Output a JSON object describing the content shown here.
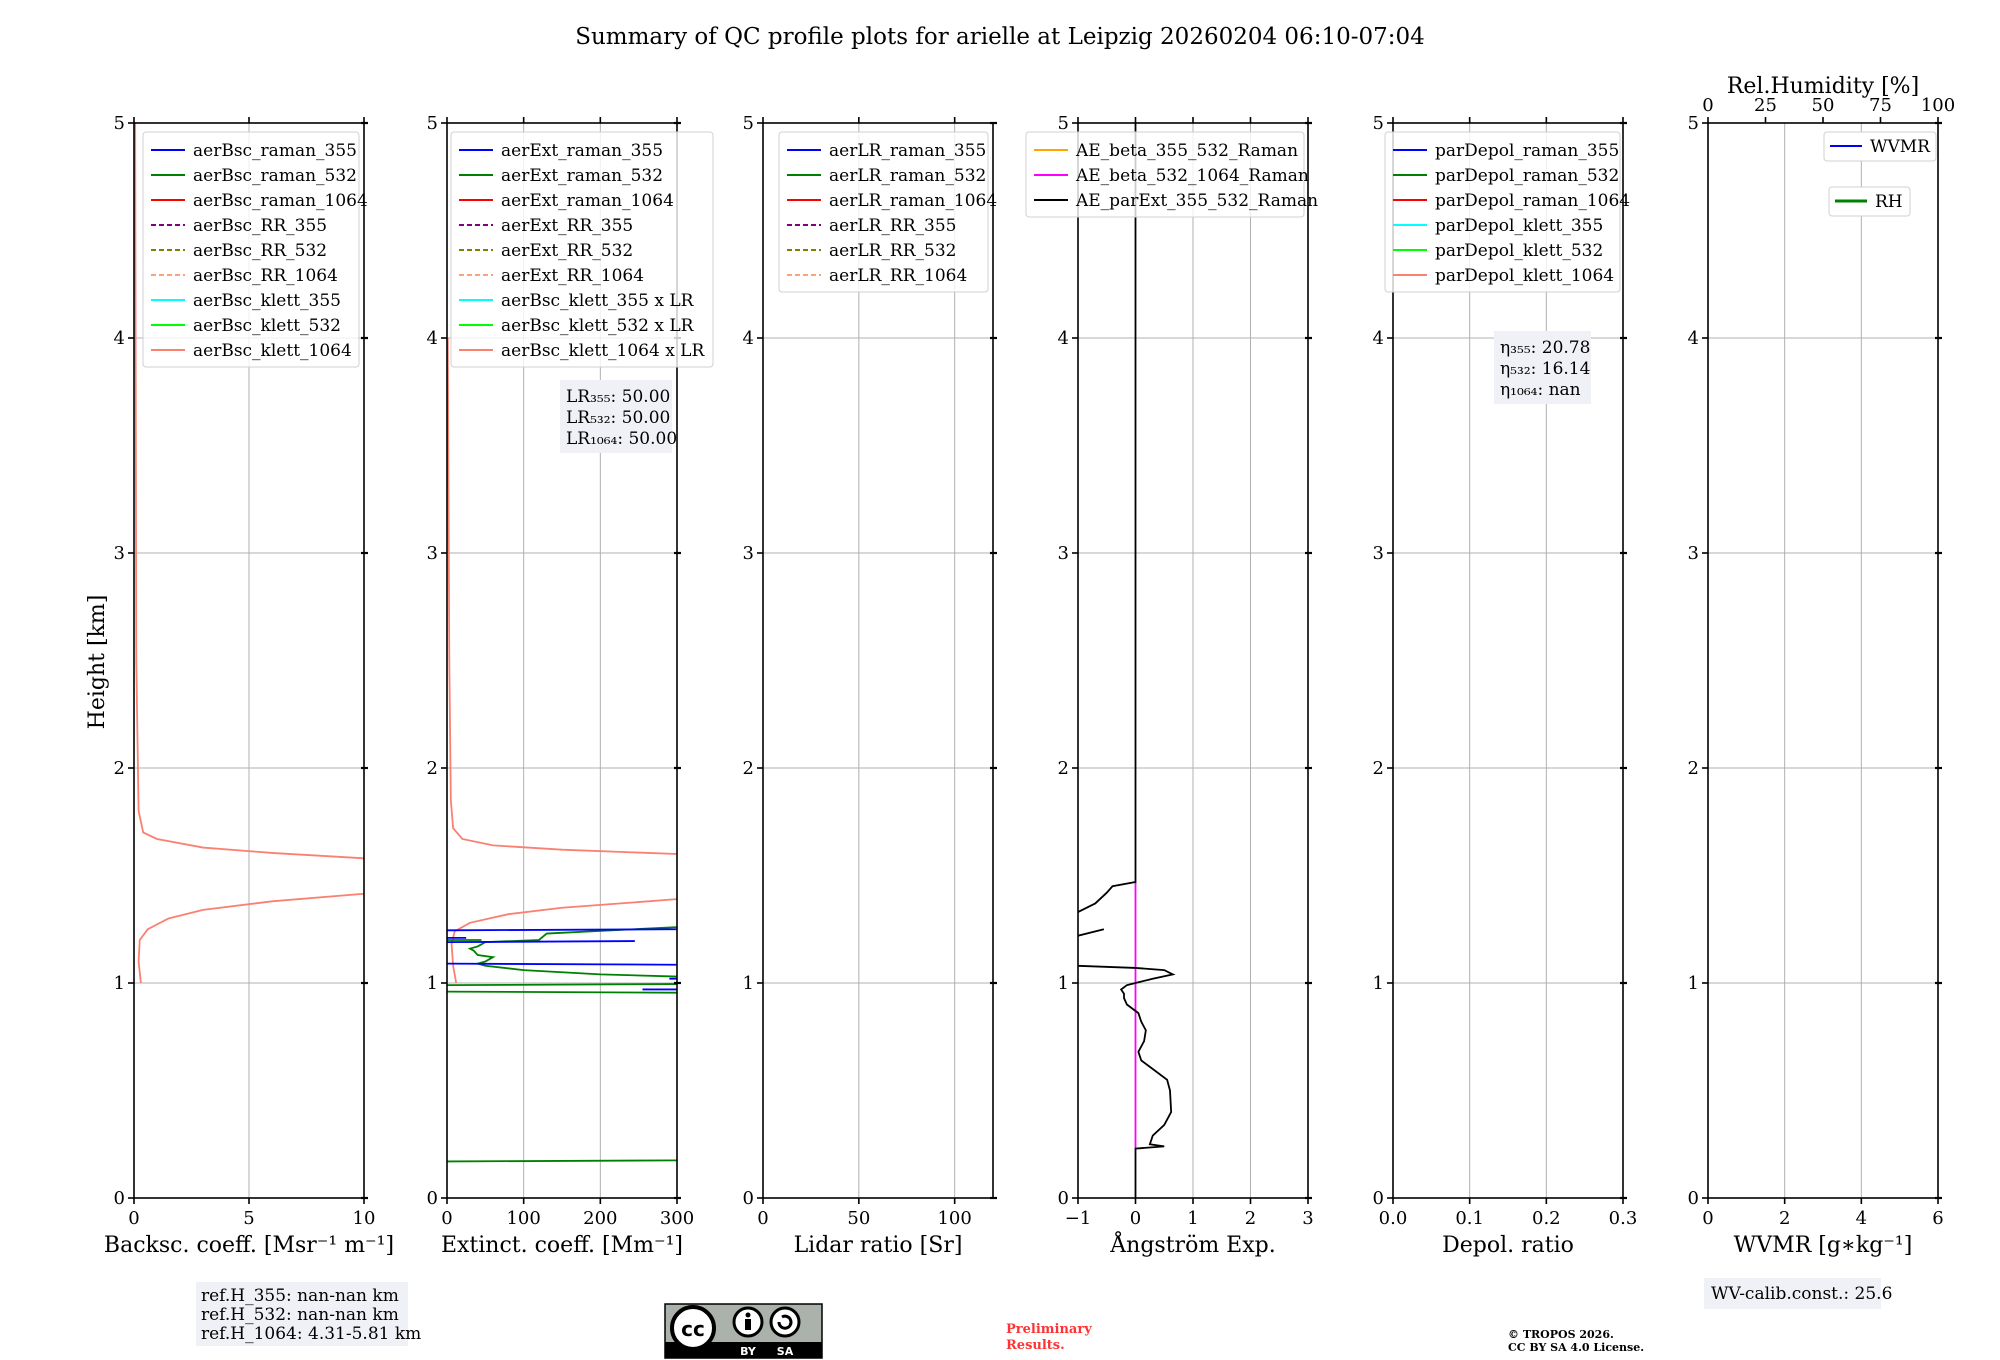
{
  "title": "Summary of QC profile plots for arielle at Leipzig 20260204 06:10-07:04",
  "ylabel": "Height [km]",
  "chart_data": [
    {
      "type": "line",
      "xlabel": "Backsc. coeff. [Msr⁻¹ m⁻¹]",
      "xlim": [
        0,
        10
      ],
      "ylim": [
        0,
        5
      ],
      "xticks": [
        0,
        5,
        10
      ],
      "xtick_labels": [
        "0",
        "5",
        "10"
      ],
      "yticks": [
        0,
        1,
        2,
        3,
        4,
        5
      ],
      "ytick_labels": [
        "0",
        "1",
        "2",
        "3",
        "4",
        "5"
      ],
      "grid": true,
      "legend_placement": "top-left",
      "legend": [
        {
          "label": "aerBsc_raman_355",
          "color": "#0000ff",
          "dash": false
        },
        {
          "label": "aerBsc_raman_532",
          "color": "#008000",
          "dash": false
        },
        {
          "label": "aerBsc_raman_1064",
          "color": "#ff0000",
          "dash": false
        },
        {
          "label": "aerBsc_RR_355",
          "color": "#800080",
          "dash": true
        },
        {
          "label": "aerBsc_RR_532",
          "color": "#808000",
          "dash": true
        },
        {
          "label": "aerBsc_RR_1064",
          "color": "#ffa07a",
          "dash": true
        },
        {
          "label": "aerBsc_klett_355",
          "color": "#00ffff",
          "dash": false
        },
        {
          "label": "aerBsc_klett_532",
          "color": "#00ff00",
          "dash": false
        },
        {
          "label": "aerBsc_klett_1064",
          "color": "#fa8072",
          "dash": false
        }
      ],
      "series": [
        {
          "name": "aerBsc_klett_1064",
          "color": "#fa8072",
          "segments": [
            [
              [
                0.3,
                1.0
              ],
              [
                0.2,
                1.1
              ],
              [
                0.25,
                1.2
              ],
              [
                0.6,
                1.25
              ],
              [
                1.5,
                1.3
              ],
              [
                3,
                1.34
              ],
              [
                6,
                1.38
              ],
              [
                10,
                1.415
              ]
            ],
            [
              [
                10,
                1.58
              ],
              [
                6,
                1.605
              ],
              [
                3,
                1.63
              ],
              [
                1,
                1.67
              ],
              [
                0.4,
                1.7
              ],
              [
                0.2,
                1.8
              ],
              [
                0.1,
                2.5
              ],
              [
                0.05,
                5
              ]
            ]
          ]
        }
      ]
    },
    {
      "type": "line",
      "xlabel": "Extinct. coeff. [Mm⁻¹]",
      "xlim": [
        0,
        300
      ],
      "ylim": [
        0,
        5
      ],
      "xticks": [
        0,
        100,
        200,
        300
      ],
      "xtick_labels": [
        "0",
        "100",
        "200",
        "300"
      ],
      "yticks": [
        0,
        1,
        2,
        3,
        4,
        5
      ],
      "ytick_labels": [
        "0",
        "1",
        "2",
        "3",
        "4",
        "5"
      ],
      "grid": true,
      "legend_placement": "top-left",
      "legend": [
        {
          "label": "aerExt_raman_355",
          "color": "#0000ff",
          "dash": false
        },
        {
          "label": "aerExt_raman_532",
          "color": "#008000",
          "dash": false
        },
        {
          "label": "aerExt_raman_1064",
          "color": "#ff0000",
          "dash": false
        },
        {
          "label": "aerExt_RR_355",
          "color": "#800080",
          "dash": true
        },
        {
          "label": "aerExt_RR_532",
          "color": "#808000",
          "dash": true
        },
        {
          "label": "aerExt_RR_1064",
          "color": "#ffa07a",
          "dash": true
        },
        {
          "label": "aerBsc_klett_355 x LR",
          "color": "#00ffff",
          "dash": false
        },
        {
          "label": "aerBsc_klett_532 x LR",
          "color": "#00ff00",
          "dash": false
        },
        {
          "label": "aerBsc_klett_1064 x LR",
          "color": "#fa8072",
          "dash": false
        }
      ],
      "annotation": [
        "LR₃₅₅: 50.00",
        "LR₅₃₂: 50.00",
        "LR₁₀₆₄: 50.00"
      ],
      "series": [
        {
          "name": "aerBsc_klett_1064 x LR",
          "color": "#fa8072",
          "segments": [
            [
              [
                12,
                1.0
              ],
              [
                8,
                1.08
              ],
              [
                6,
                1.18
              ],
              [
                10,
                1.24
              ],
              [
                30,
                1.28
              ],
              [
                80,
                1.32
              ],
              [
                150,
                1.35
              ],
              [
                300,
                1.39
              ]
            ],
            [
              [
                300,
                1.6
              ],
              [
                150,
                1.62
              ],
              [
                60,
                1.64
              ],
              [
                20,
                1.67
              ],
              [
                8,
                1.72
              ],
              [
                5,
                1.85
              ],
              [
                3,
                2.5
              ],
              [
                1,
                4.0
              ]
            ]
          ]
        },
        {
          "name": "aerExt_raman_532",
          "color": "#008000",
          "segments": [
            [
              [
                0,
                0.17
              ],
              [
                300,
                0.175
              ]
            ],
            [
              [
                0,
                0.96
              ],
              [
                300,
                0.955
              ]
            ],
            [
              [
                0,
                0.99
              ],
              [
                300,
                0.995
              ]
            ],
            [
              [
                300,
                1.03
              ],
              [
                200,
                1.04
              ],
              [
                100,
                1.06
              ],
              [
                50,
                1.08
              ],
              [
                40,
                1.09
              ],
              [
                50,
                1.1
              ],
              [
                60,
                1.12
              ],
              [
                40,
                1.13
              ],
              [
                35,
                1.15
              ],
              [
                30,
                1.16
              ],
              [
                40,
                1.17
              ],
              [
                45,
                1.18
              ],
              [
                50,
                1.19
              ],
              [
                120,
                1.2
              ],
              [
                130,
                1.23
              ],
              [
                300,
                1.26
              ]
            ],
            [
              [
                0,
                1.2
              ],
              [
                45,
                1.2
              ]
            ]
          ]
        },
        {
          "name": "aerExt_raman_355",
          "color": "#0000ff",
          "segments": [
            [
              [
                0,
                1.09
              ],
              [
                300,
                1.085
              ]
            ],
            [
              [
                0,
                1.19
              ],
              [
                245,
                1.195
              ]
            ],
            [
              [
                0,
                1.21
              ],
              [
                25,
                1.21
              ]
            ],
            [
              [
                0,
                1.245
              ],
              [
                300,
                1.25
              ]
            ],
            [
              [
                255,
                0.97
              ],
              [
                300,
                0.97
              ]
            ],
            [
              [
                290,
                1.02
              ],
              [
                300,
                1.02
              ]
            ]
          ]
        }
      ]
    },
    {
      "type": "line",
      "xlabel": "Lidar ratio [Sr]",
      "xlim": [
        0,
        120
      ],
      "ylim": [
        0,
        5
      ],
      "xticks": [
        0,
        50,
        100
      ],
      "xtick_labels": [
        "0",
        "50",
        "100"
      ],
      "yticks": [
        0,
        1,
        2,
        3,
        4,
        5
      ],
      "ytick_labels": [
        "0",
        "1",
        "2",
        "3",
        "4",
        "5"
      ],
      "grid": true,
      "legend_placement": "top-left",
      "legend": [
        {
          "label": "aerLR_raman_355",
          "color": "#0000ff",
          "dash": false
        },
        {
          "label": "aerLR_raman_532",
          "color": "#008000",
          "dash": false
        },
        {
          "label": "aerLR_raman_1064",
          "color": "#ff0000",
          "dash": false
        },
        {
          "label": "aerLR_RR_355",
          "color": "#800080",
          "dash": true
        },
        {
          "label": "aerLR_RR_532",
          "color": "#808000",
          "dash": true
        },
        {
          "label": "aerLR_RR_1064",
          "color": "#ffa07a",
          "dash": true
        }
      ],
      "series": []
    },
    {
      "type": "line",
      "xlabel": "Ångström Exp.",
      "xlim": [
        -1,
        3
      ],
      "ylim": [
        0,
        5
      ],
      "xticks": [
        -1,
        0,
        1,
        2,
        3
      ],
      "xtick_labels": [
        "−1",
        "0",
        "1",
        "2",
        "3"
      ],
      "yticks": [
        0,
        1,
        2,
        3,
        4,
        5
      ],
      "ytick_labels": [
        "0",
        "1",
        "2",
        "3",
        "4",
        "5"
      ],
      "grid": true,
      "legend_placement": "top-left",
      "legend": [
        {
          "label": "AE_beta_355_532_Raman",
          "color": "#ffa500",
          "dash": false
        },
        {
          "label": "AE_beta_532_1064_Raman",
          "color": "#ff00ff",
          "dash": false
        },
        {
          "label": "AE_parExt_355_532_Raman",
          "color": "#000000",
          "dash": false
        }
      ],
      "series": [
        {
          "name": "AE_beta_532_1064_Raman",
          "color": "#ff00ff",
          "segments": [
            [
              [
                0,
                0.23
              ],
              [
                0,
                1.47
              ]
            ]
          ]
        },
        {
          "name": "AE_parExt_355_532_Raman",
          "color": "#000000",
          "segments": [
            [
              [
                0,
                0
              ],
              [
                0,
                0.23
              ],
              [
                0.5,
                0.24
              ],
              [
                0.25,
                0.25
              ],
              [
                0.3,
                0.29
              ],
              [
                0.5,
                0.34
              ],
              [
                0.62,
                0.4
              ],
              [
                0.6,
                0.5
              ],
              [
                0.55,
                0.55
              ],
              [
                0.3,
                0.6
              ],
              [
                0.1,
                0.64
              ],
              [
                0.05,
                0.68
              ],
              [
                0.15,
                0.73
              ],
              [
                0.18,
                0.78
              ],
              [
                0.1,
                0.82
              ],
              [
                0.05,
                0.86
              ],
              [
                -0.15,
                0.9
              ],
              [
                -0.2,
                0.93
              ],
              [
                -0.2,
                0.95
              ],
              [
                -0.25,
                0.97
              ],
              [
                -0.15,
                0.99
              ],
              [
                0,
                1.0
              ],
              [
                0.3,
                1.02
              ],
              [
                0.65,
                1.04
              ],
              [
                0.5,
                1.06
              ],
              [
                0,
                1.07
              ],
              [
                -1,
                1.08
              ]
            ],
            [
              [
                -1,
                1.22
              ],
              [
                -0.55,
                1.25
              ]
            ],
            [
              [
                -1,
                1.33
              ],
              [
                -0.7,
                1.37
              ],
              [
                -0.5,
                1.42
              ],
              [
                -0.4,
                1.45
              ],
              [
                0,
                1.47
              ],
              [
                0,
                5
              ]
            ]
          ]
        }
      ]
    },
    {
      "type": "line",
      "xlabel": "Depol. ratio",
      "xlim": [
        0,
        0.3
      ],
      "ylim": [
        0,
        5
      ],
      "xticks": [
        0,
        0.1,
        0.2,
        0.3
      ],
      "xtick_labels": [
        "0.0",
        "0.1",
        "0.2",
        "0.3"
      ],
      "yticks": [
        0,
        1,
        2,
        3,
        4,
        5
      ],
      "ytick_labels": [
        "0",
        "1",
        "2",
        "3",
        "4",
        "5"
      ],
      "grid": true,
      "legend_placement": "top-left",
      "legend": [
        {
          "label": "parDepol_raman_355",
          "color": "#0000ff",
          "dash": false
        },
        {
          "label": "parDepol_raman_532",
          "color": "#008000",
          "dash": false
        },
        {
          "label": "parDepol_raman_1064",
          "color": "#ff0000",
          "dash": false
        },
        {
          "label": "parDepol_klett_355",
          "color": "#00ffff",
          "dash": false
        },
        {
          "label": "parDepol_klett_532",
          "color": "#00ff00",
          "dash": false
        },
        {
          "label": "parDepol_klett_1064",
          "color": "#fa8072",
          "dash": false
        }
      ],
      "annotation": [
        "η₃₅₅: 20.78",
        "η₅₃₂: 16.14",
        "η₁₀₆₄: nan"
      ],
      "series": []
    },
    {
      "type": "line",
      "xlabel": "WVMR [g∗kg⁻¹]",
      "xlim": [
        0,
        6
      ],
      "ylim": [
        0,
        5
      ],
      "xticks": [
        0,
        2,
        4,
        6
      ],
      "xtick_labels": [
        "0",
        "2",
        "4",
        "6"
      ],
      "yticks": [
        0,
        1,
        2,
        3,
        4,
        5
      ],
      "ytick_labels": [
        "0",
        "1",
        "2",
        "3",
        "4",
        "5"
      ],
      "top_axis": {
        "label": "Rel.Humidity [%]",
        "xlim": [
          0,
          100
        ],
        "xticks": [
          0,
          25,
          50,
          75,
          100
        ],
        "xtick_labels": [
          "0",
          "25",
          "50",
          "75",
          "100"
        ]
      },
      "grid": true,
      "legend_placement": "top-right",
      "legend": [
        {
          "label": "WVMR",
          "color": "#0000ff",
          "dash": false
        },
        {
          "label": "RH",
          "color": "#008000",
          "dash": false
        }
      ],
      "series": []
    }
  ],
  "footer": {
    "refh": [
      "ref.H_355: nan-nan km",
      "ref.H_532: nan-nan km",
      "ref.H_1064: 4.31-5.81 km"
    ],
    "wv_calib": "WV-calib.const.: 25.6",
    "preliminary": [
      "Preliminary",
      "Results."
    ],
    "copyright": [
      "© TROPOS 2026.",
      "CC BY SA 4.0 License."
    ],
    "license_logo": {
      "cc": "cc",
      "by": "BY",
      "sa": "SA"
    },
    "colors": {
      "preliminary": "#ff3333",
      "annotation_bg": "#f0f1f6"
    }
  }
}
